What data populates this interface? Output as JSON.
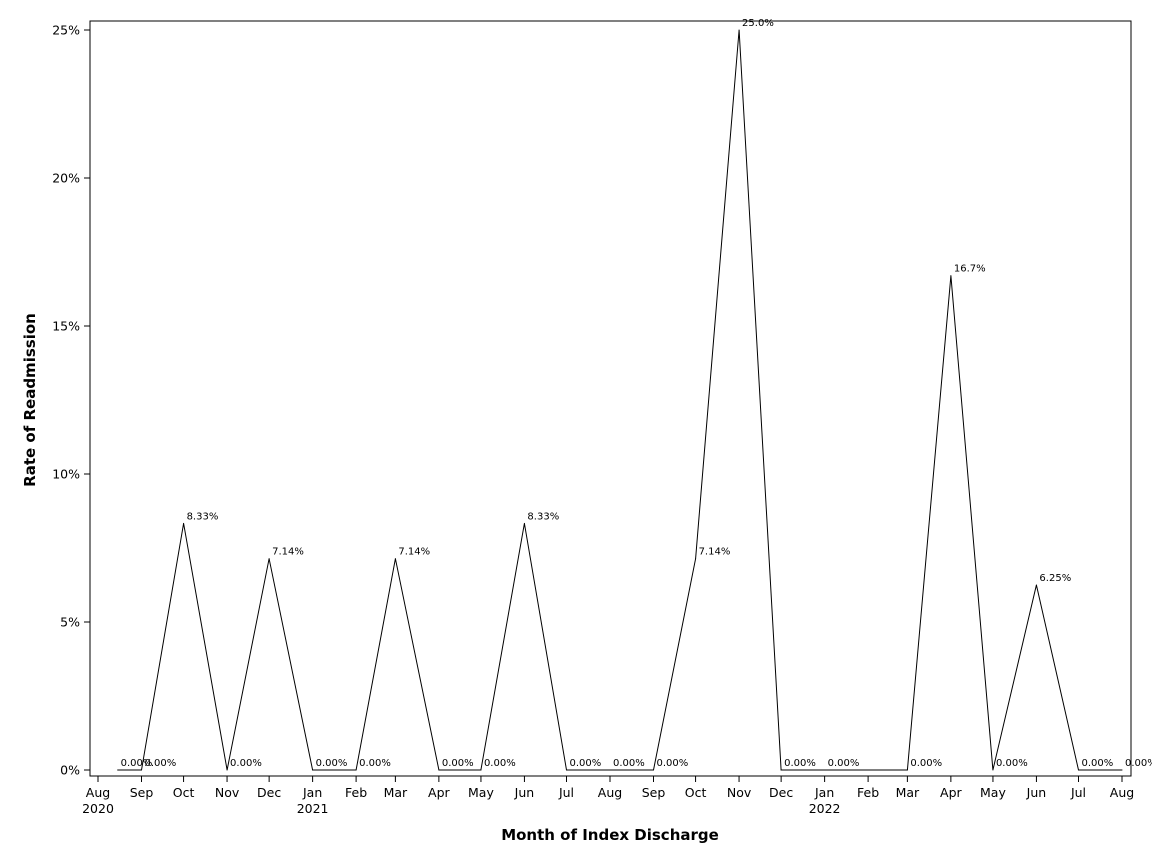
{
  "chart_data": {
    "type": "line",
    "xlabel": "Month of Index Discharge",
    "ylabel": "Rate of Readmission",
    "ylim": [
      0,
      25
    ],
    "yticks": [
      "0%",
      "5%",
      "10%",
      "15%",
      "20%",
      "25%"
    ],
    "ytick_values": [
      0,
      5,
      10,
      15,
      20,
      25
    ],
    "x_tick_labels": [
      {
        "month": "Aug",
        "year": "2020"
      },
      {
        "month": "Sep",
        "year": ""
      },
      {
        "month": "Oct",
        "year": ""
      },
      {
        "month": "Nov",
        "year": ""
      },
      {
        "month": "Dec",
        "year": ""
      },
      {
        "month": "Jan",
        "year": "2021"
      },
      {
        "month": "Feb",
        "year": ""
      },
      {
        "month": "Mar",
        "year": ""
      },
      {
        "month": "Apr",
        "year": ""
      },
      {
        "month": "May",
        "year": ""
      },
      {
        "month": "Jun",
        "year": ""
      },
      {
        "month": "Jul",
        "year": ""
      },
      {
        "month": "Aug",
        "year": ""
      },
      {
        "month": "Sep",
        "year": ""
      },
      {
        "month": "Oct",
        "year": ""
      },
      {
        "month": "Nov",
        "year": ""
      },
      {
        "month": "Dec",
        "year": ""
      },
      {
        "month": "Jan",
        "year": "2022"
      },
      {
        "month": "Feb",
        "year": ""
      },
      {
        "month": "Mar",
        "year": ""
      },
      {
        "month": "Apr",
        "year": ""
      },
      {
        "month": "May",
        "year": ""
      },
      {
        "month": "Jun",
        "year": ""
      },
      {
        "month": "Jul",
        "year": ""
      },
      {
        "month": "Aug",
        "year": ""
      }
    ],
    "x_tick_dates": [
      "2020-08",
      "2020-09",
      "2020-10",
      "2020-11",
      "2020-12",
      "2021-01",
      "2021-02",
      "2021-03",
      "2021-04",
      "2021-05",
      "2021-06",
      "2021-07",
      "2021-08",
      "2021-09",
      "2021-10",
      "2021-11",
      "2021-12",
      "2022-01",
      "2022-02",
      "2022-03",
      "2022-04",
      "2022-05",
      "2022-06",
      "2022-07",
      "2022-08"
    ],
    "points": [
      {
        "x": "2020-08-15",
        "y": 0,
        "label": "0.00%"
      },
      {
        "x": "2020-09-01",
        "y": 0,
        "label": "0.00%"
      },
      {
        "x": "2020-10-01",
        "y": 8.33,
        "label": "8.33%"
      },
      {
        "x": "2020-11-01",
        "y": 0,
        "label": "0.00%"
      },
      {
        "x": "2020-12-01",
        "y": 7.14,
        "label": "7.14%"
      },
      {
        "x": "2021-01-01",
        "y": 0,
        "label": "0.00%"
      },
      {
        "x": "2021-02-01",
        "y": 0,
        "label": "0.00%"
      },
      {
        "x": "2021-03-01",
        "y": 7.14,
        "label": "7.14%"
      },
      {
        "x": "2021-04-01",
        "y": 0,
        "label": "0.00%"
      },
      {
        "x": "2021-05-01",
        "y": 0,
        "label": "0.00%"
      },
      {
        "x": "2021-06-01",
        "y": 8.33,
        "label": "8.33%"
      },
      {
        "x": "2021-07-01",
        "y": 0,
        "label": "0.00%"
      },
      {
        "x": "2021-08-01",
        "y": 0,
        "label": "0.00%"
      },
      {
        "x": "2021-09-01",
        "y": 0,
        "label": "0.00%"
      },
      {
        "x": "2021-10-01",
        "y": 7.14,
        "label": "7.14%"
      },
      {
        "x": "2021-11-01",
        "y": 25.0,
        "label": "25.0%"
      },
      {
        "x": "2021-12-01",
        "y": 0,
        "label": "0.00%"
      },
      {
        "x": "2022-01-01",
        "y": 0,
        "label": "0.00%"
      },
      {
        "x": "2022-02-01",
        "y": 0,
        "label": ""
      },
      {
        "x": "2022-03-01",
        "y": 0,
        "label": "0.00%"
      },
      {
        "x": "2022-04-01",
        "y": 16.7,
        "label": "16.7%"
      },
      {
        "x": "2022-05-01",
        "y": 0,
        "label": "0.00%"
      },
      {
        "x": "2022-06-01",
        "y": 6.25,
        "label": "6.25%"
      },
      {
        "x": "2022-07-01",
        "y": 0,
        "label": "0.00%"
      },
      {
        "x": "2022-08-01",
        "y": 0,
        "label": "0.00%"
      }
    ],
    "grid": false,
    "legend": "none",
    "line_color": "#000000"
  }
}
